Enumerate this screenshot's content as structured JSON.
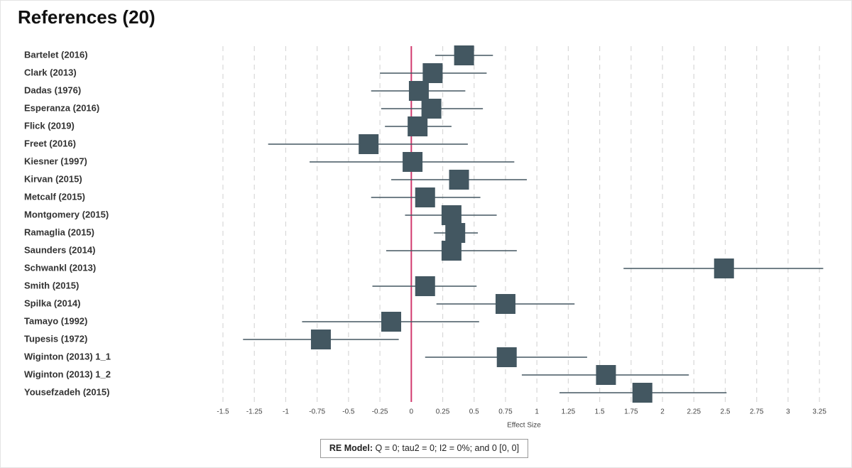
{
  "chart_data": {
    "type": "forest",
    "title": "References (20)",
    "x_label": "Effect Size",
    "categories": [
      "Bartelet (2016)",
      "Clark (2013)",
      "Dadas (1976)",
      "Esperanza (2016)",
      "Flick (2019)",
      "Freet (2016)",
      "Kiesner (1997)",
      "Kirvan (2015)",
      "Metcalf (2015)",
      "Montgomery (2015)",
      "Ramaglia (2015)",
      "Saunders (2014)",
      "Schwankl (2013)",
      "Smith (2015)",
      "Spilka (2014)",
      "Tamayo (1992)",
      "Tupesis (1972)",
      "Wiginton (2013) 1_1",
      "Wiginton (2013) 1_2",
      "Yousefzadeh (2015)"
    ],
    "values": [
      0.42,
      0.17,
      0.06,
      0.16,
      0.05,
      -0.34,
      0.01,
      0.38,
      0.11,
      0.32,
      0.35,
      0.32,
      2.49,
      0.11,
      0.75,
      -0.16,
      -0.72,
      0.76,
      1.55,
      1.84
    ],
    "lower": [
      0.19,
      -0.25,
      -0.32,
      -0.24,
      -0.21,
      -1.14,
      -0.81,
      -0.16,
      -0.32,
      -0.05,
      0.18,
      -0.2,
      1.69,
      -0.31,
      0.2,
      -0.87,
      -1.34,
      0.11,
      0.88,
      1.18
    ],
    "upper": [
      0.65,
      0.6,
      0.43,
      0.57,
      0.32,
      0.45,
      0.82,
      0.92,
      0.55,
      0.68,
      0.53,
      0.84,
      3.28,
      0.52,
      1.3,
      0.54,
      -0.1,
      1.4,
      2.21,
      2.51
    ],
    "color": "#435761",
    "reference_line": 0,
    "reference_color": "#d23a6e",
    "xlim": [
      -1.5,
      3.3
    ],
    "xticks": [
      -1.5,
      -1.25,
      -1,
      -0.75,
      -0.5,
      -0.25,
      0,
      0.25,
      0.5,
      0.75,
      1,
      1.25,
      1.5,
      1.75,
      2,
      2.25,
      2.5,
      2.75,
      3,
      3.25
    ],
    "grid": true,
    "footer": {
      "label": "RE Model:",
      "text": "Q = 0; tau2 = 0; I2 = 0%; and 0 [0, 0]"
    }
  }
}
